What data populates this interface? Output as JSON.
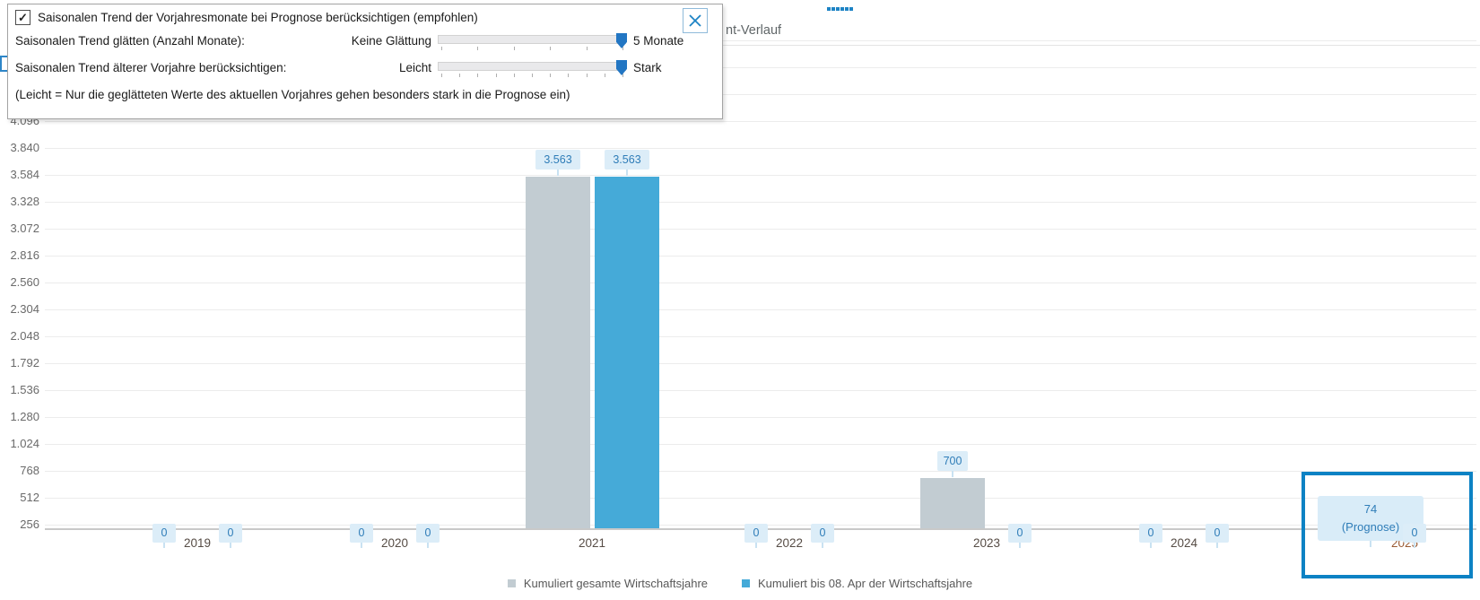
{
  "header": {
    "partial_title": "nt-Verlauf"
  },
  "overlay_panel": {
    "checkbox_label": "Saisonalen Trend der Vorjahresmonate bei Prognose berücksichtigen (empfohlen)",
    "checkbox_checked": true,
    "checkmark_glyph": "✓",
    "sliders": [
      {
        "label": "Saisonalen Trend glätten (Anzahl Monate):",
        "min_label": "Keine Glättung",
        "max_label": "5 Monate",
        "tick_count": 6,
        "position": "max"
      },
      {
        "label": "Saisonalen Trend älterer Vorjahre berücksichtigen:",
        "min_label": "Leicht",
        "max_label": "Stark",
        "tick_count": 11,
        "position": "max"
      }
    ],
    "hint": "(Leicht = Nur die geglätteten Werte des aktuellen Vorjahres gehen besonders stark in die Prognose ein)"
  },
  "chart_data": {
    "type": "bar",
    "categories": [
      "2019",
      "2020",
      "2021",
      "2022",
      "2023",
      "2024",
      "2025"
    ],
    "series": [
      {
        "name": "Kumuliert gesamte Wirtschaftsjahre",
        "color": "#c2ccd2",
        "values": [
          0,
          0,
          3563,
          0,
          700,
          0,
          74
        ],
        "display": [
          "0",
          "0",
          "3.563",
          "0",
          "700",
          "0",
          "74"
        ]
      },
      {
        "name": "Kumuliert bis 08. Apr der Wirtschaftsjahre",
        "color": "#45aad8",
        "values": [
          0,
          0,
          3563,
          0,
          0,
          0,
          0
        ],
        "display": [
          "0",
          "0",
          "3.563",
          "0",
          "0",
          "0",
          "0"
        ]
      }
    ],
    "y_tick_labels": [
      "256",
      "512",
      "768",
      "1.024",
      "1.280",
      "1.536",
      "1.792",
      "2.048",
      "2.304",
      "2.560",
      "2.816",
      "3.072",
      "3.328",
      "3.584",
      "3.840",
      "4.096"
    ],
    "tick_step": 256,
    "grid_top_value": 4864,
    "ylim": [
      0,
      4864
    ],
    "grid": true,
    "legend_position": "bottom",
    "forecast": {
      "category": "2025",
      "series_index": 0,
      "label_lines": [
        "74",
        "(Prognose)"
      ]
    },
    "highlight_category": "2025",
    "colors": {
      "badge_bg": "#dcedf8",
      "badge_text": "#2f7db8",
      "highlight_border": "#0c82c4",
      "axis_text": "#6a6a6a",
      "year_text": "#564c45",
      "forecast_year_text": "#9a5a33"
    }
  }
}
